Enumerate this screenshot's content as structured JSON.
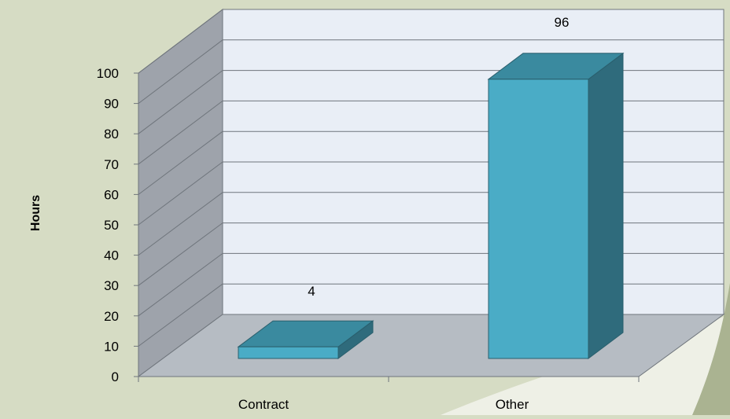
{
  "chart_data": {
    "type": "bar",
    "title": "",
    "xlabel": "",
    "ylabel": "Hours",
    "categories": [
      "Contract",
      "Other"
    ],
    "values": [
      4,
      96
    ],
    "data_labels": [
      "4",
      "96"
    ],
    "ylim": [
      0,
      100
    ],
    "yticks": [
      "0",
      "10",
      "20",
      "30",
      "40",
      "50",
      "60",
      "70",
      "80",
      "90",
      "100"
    ],
    "grid": true,
    "style": "3d-column",
    "colors": {
      "bar_front": "#4aacc6",
      "bar_top": "#3a8a9f",
      "bar_side": "#2f6b7c",
      "back_wall": "#e9eef6",
      "side_wall": "#9aa0a8",
      "floor": "#b6bcc3",
      "background": "#d6dcc4"
    }
  }
}
